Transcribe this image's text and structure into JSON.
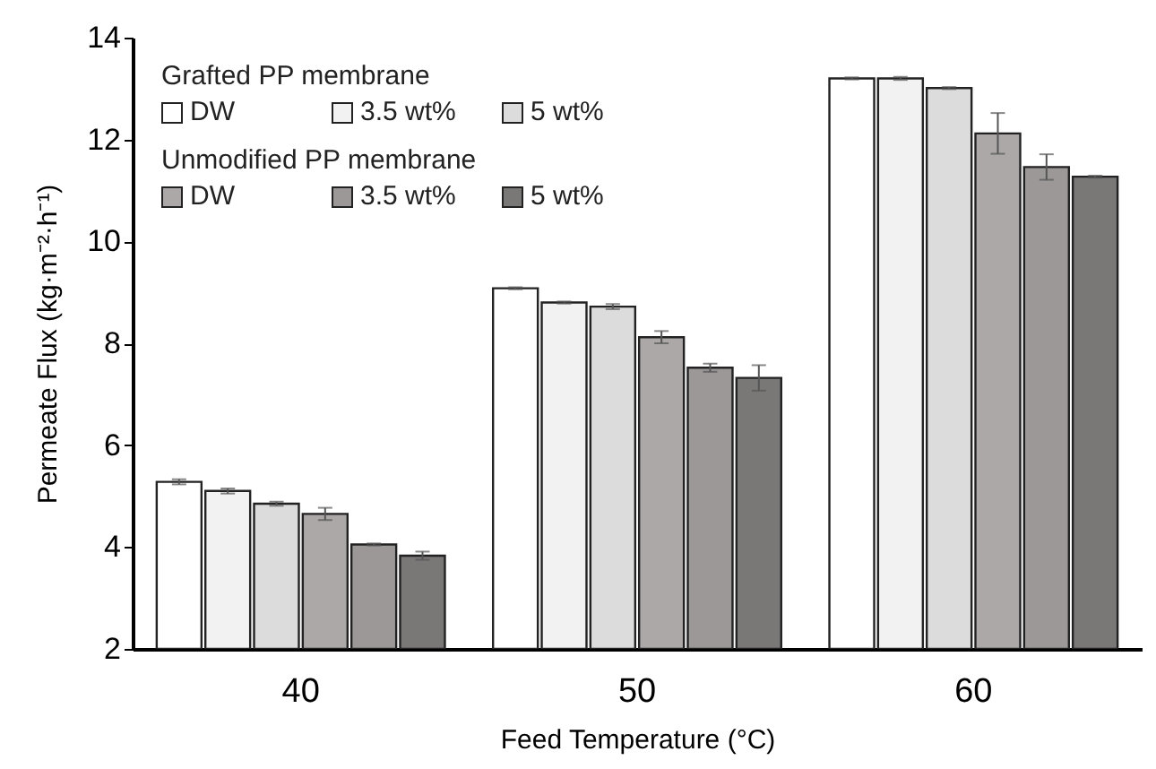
{
  "chart_data": {
    "type": "bar",
    "xlabel": "Feed Temperature (°C)",
    "ylabel": "Permeate Flux (kg·m⁻²·h⁻¹)",
    "categories": [
      "40",
      "50",
      "60"
    ],
    "series": [
      {
        "name": "DW",
        "color": "#ffffff",
        "values": [
          5.28,
          9.08,
          13.2
        ],
        "errors": [
          0.05,
          0.02,
          0.02
        ]
      },
      {
        "name": "3.5 wt%",
        "color": "#f2f2f2",
        "values": [
          5.1,
          8.8,
          13.2
        ],
        "errors": [
          0.05,
          0.02,
          0.03
        ]
      },
      {
        "name": "5 wt%",
        "color": "#dcdcdc",
        "values": [
          4.85,
          8.72,
          13.01
        ],
        "errors": [
          0.04,
          0.05,
          0.02
        ]
      },
      {
        "name": "DW",
        "color": "#aca8a8",
        "values": [
          4.65,
          8.12,
          12.12
        ],
        "errors": [
          0.12,
          0.12,
          0.4
        ]
      },
      {
        "name": "3.5 wt%",
        "color": "#9c9898",
        "values": [
          4.05,
          7.52,
          11.46
        ],
        "errors": [
          0.02,
          0.08,
          0.25
        ]
      },
      {
        "name": "5 wt%",
        "color": "#7a7777",
        "values": [
          3.83,
          7.32,
          11.27
        ],
        "errors": [
          0.08,
          0.25,
          0.02
        ]
      }
    ],
    "annotations": [
      "Grafted PP membrane",
      "Unmodified PP membrane"
    ],
    "ylim": [
      2,
      14
    ],
    "yticks": [
      2,
      4,
      6,
      8,
      10,
      12,
      14
    ],
    "grid": false,
    "legend": "top left"
  }
}
